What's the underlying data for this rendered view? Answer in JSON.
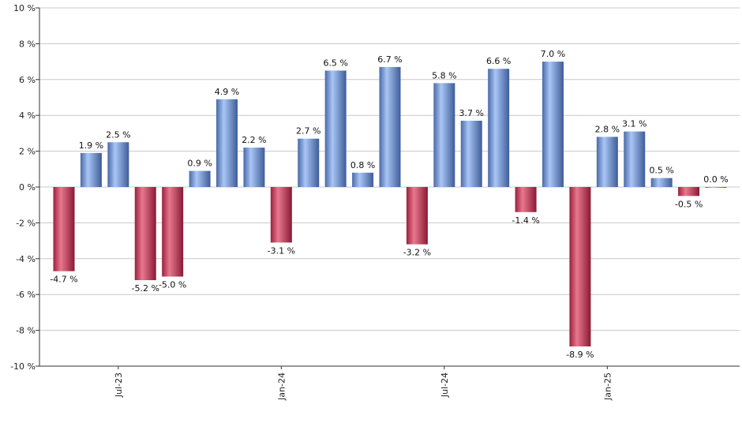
{
  "chart_data": {
    "type": "bar",
    "title": "",
    "xlabel": "",
    "ylabel": "",
    "ylim": [
      -10,
      10
    ],
    "y_ticks": [
      10,
      8,
      6,
      4,
      2,
      0,
      -2,
      -4,
      -6,
      -8,
      -10
    ],
    "y_tick_labels": [
      "10 %",
      "8 %",
      "6 %",
      "4 %",
      "2 %",
      "0 %",
      "-2 %",
      "-4 %",
      "-6 %",
      "-8 %",
      "-10 %"
    ],
    "grid": true,
    "legend": "none",
    "x_tick_labels": [
      {
        "label": "Jul-23",
        "index": 2
      },
      {
        "label": "Jan-24",
        "index": 8
      },
      {
        "label": "Jul-24",
        "index": 14
      },
      {
        "label": "Jan-25",
        "index": 20
      }
    ],
    "values": [
      -4.7,
      1.9,
      2.5,
      -5.2,
      -5.0,
      0.9,
      4.9,
      2.2,
      -3.1,
      2.7,
      6.5,
      0.8,
      6.7,
      -3.2,
      5.8,
      3.7,
      6.6,
      -1.4,
      7.0,
      -8.9,
      2.8,
      3.1,
      0.5,
      -0.5,
      0.0
    ],
    "value_labels": [
      "-4.7 %",
      "1.9 %",
      "2.5 %",
      "-5.2 %",
      "-5.0 %",
      "0.9 %",
      "4.9 %",
      "2.2 %",
      "-3.1 %",
      "2.7 %",
      "6.5 %",
      "0.8 %",
      "6.7 %",
      "-3.2 %",
      "5.8 %",
      "3.7 %",
      "6.6 %",
      "-1.4 %",
      "7.0 %",
      "-8.9 %",
      "2.8 %",
      "3.1 %",
      "0.5 %",
      "-0.5 %",
      "0.0 %"
    ],
    "colors": {
      "positive_light": "#a9c6f5",
      "positive_dark": "#4a6aa8",
      "negative_light": "#e8788e",
      "negative_dark": "#9c1f3c",
      "grid": "#c8c8c8",
      "axis": "#333333"
    }
  }
}
